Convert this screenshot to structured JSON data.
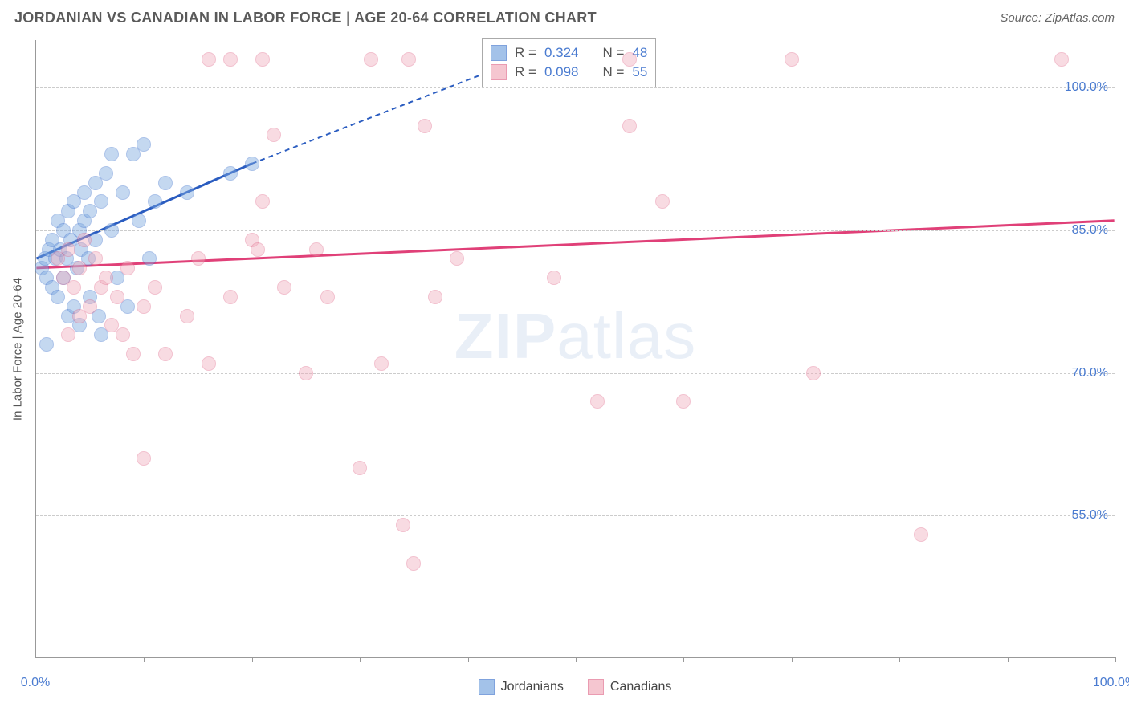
{
  "header": {
    "title": "JORDANIAN VS CANADIAN IN LABOR FORCE | AGE 20-64 CORRELATION CHART",
    "source_prefix": "Source: ",
    "source_site": "ZipAtlas.com"
  },
  "chart": {
    "type": "scatter",
    "ylabel": "In Labor Force | Age 20-64",
    "xlim": [
      0,
      100
    ],
    "ylim": [
      40,
      105
    ],
    "yticks": [
      {
        "v": 55.0,
        "label": "55.0%"
      },
      {
        "v": 70.0,
        "label": "70.0%"
      },
      {
        "v": 85.0,
        "label": "85.0%"
      },
      {
        "v": 100.0,
        "label": "100.0%"
      }
    ],
    "xticks_minor": [
      10,
      20,
      30,
      40,
      50,
      60,
      70,
      80,
      90,
      100
    ],
    "xticks_label": [
      {
        "v": 0,
        "label": "0.0%"
      },
      {
        "v": 100,
        "label": "100.0%"
      }
    ],
    "background_color": "#ffffff",
    "grid_color": "#cccccc",
    "axis_color": "#999999",
    "marker_size": 18,
    "marker_stroke_width": 1.5,
    "watermark": "ZIPatlas",
    "series": [
      {
        "name": "Jordanians",
        "fill_color": "#7da9e0",
        "fill_opacity": 0.45,
        "stroke_color": "#4a7bd0",
        "trend_color": "#2a5cc0",
        "trend_solid": {
          "x1": 0,
          "y1": 82,
          "x2": 20,
          "y2": 92
        },
        "trend_dash": {
          "x1": 20,
          "y1": 92,
          "x2": 45,
          "y2": 103
        },
        "stats": {
          "R": "0.324",
          "N": "48"
        },
        "points": [
          {
            "x": 0.5,
            "y": 81
          },
          {
            "x": 0.8,
            "y": 82
          },
          {
            "x": 1.0,
            "y": 80
          },
          {
            "x": 1.2,
            "y": 83
          },
          {
            "x": 1.5,
            "y": 84
          },
          {
            "x": 1.5,
            "y": 79
          },
          {
            "x": 1.8,
            "y": 82
          },
          {
            "x": 2.0,
            "y": 86
          },
          {
            "x": 2.0,
            "y": 78
          },
          {
            "x": 2.2,
            "y": 83
          },
          {
            "x": 2.5,
            "y": 85
          },
          {
            "x": 2.5,
            "y": 80
          },
          {
            "x": 2.8,
            "y": 82
          },
          {
            "x": 3.0,
            "y": 87
          },
          {
            "x": 3.0,
            "y": 76
          },
          {
            "x": 3.2,
            "y": 84
          },
          {
            "x": 3.5,
            "y": 88
          },
          {
            "x": 3.5,
            "y": 77
          },
          {
            "x": 3.8,
            "y": 81
          },
          {
            "x": 4.0,
            "y": 85
          },
          {
            "x": 4.0,
            "y": 75
          },
          {
            "x": 4.2,
            "y": 83
          },
          {
            "x": 4.5,
            "y": 86
          },
          {
            "x": 4.5,
            "y": 89
          },
          {
            "x": 4.8,
            "y": 82
          },
          {
            "x": 5.0,
            "y": 87
          },
          {
            "x": 5.0,
            "y": 78
          },
          {
            "x": 5.5,
            "y": 90
          },
          {
            "x": 5.5,
            "y": 84
          },
          {
            "x": 5.8,
            "y": 76
          },
          {
            "x": 6.0,
            "y": 88
          },
          {
            "x": 6.0,
            "y": 74
          },
          {
            "x": 1.0,
            "y": 73
          },
          {
            "x": 6.5,
            "y": 91
          },
          {
            "x": 7.0,
            "y": 93
          },
          {
            "x": 7.0,
            "y": 85
          },
          {
            "x": 7.5,
            "y": 80
          },
          {
            "x": 8.0,
            "y": 89
          },
          {
            "x": 8.5,
            "y": 77
          },
          {
            "x": 9.0,
            "y": 93
          },
          {
            "x": 9.5,
            "y": 86
          },
          {
            "x": 10.0,
            "y": 94
          },
          {
            "x": 10.5,
            "y": 82
          },
          {
            "x": 11.0,
            "y": 88
          },
          {
            "x": 12.0,
            "y": 90
          },
          {
            "x": 14.0,
            "y": 89
          },
          {
            "x": 18.0,
            "y": 91
          },
          {
            "x": 20.0,
            "y": 92
          }
        ]
      },
      {
        "name": "Canadians",
        "fill_color": "#f0a8b8",
        "fill_opacity": 0.4,
        "stroke_color": "#e06688",
        "trend_color": "#e04078",
        "trend_solid": {
          "x1": 0,
          "y1": 81,
          "x2": 100,
          "y2": 86
        },
        "trend_dash": null,
        "stats": {
          "R": "0.098",
          "N": "55"
        },
        "points": [
          {
            "x": 2.0,
            "y": 82
          },
          {
            "x": 2.5,
            "y": 80
          },
          {
            "x": 3.0,
            "y": 83
          },
          {
            "x": 3.5,
            "y": 79
          },
          {
            "x": 4.0,
            "y": 81
          },
          {
            "x": 4.5,
            "y": 84
          },
          {
            "x": 5.0,
            "y": 77
          },
          {
            "x": 5.5,
            "y": 82
          },
          {
            "x": 6.0,
            "y": 79
          },
          {
            "x": 6.5,
            "y": 80
          },
          {
            "x": 7.0,
            "y": 75
          },
          {
            "x": 7.5,
            "y": 78
          },
          {
            "x": 8.0,
            "y": 74
          },
          {
            "x": 8.5,
            "y": 81
          },
          {
            "x": 9.0,
            "y": 72
          },
          {
            "x": 10.0,
            "y": 77
          },
          {
            "x": 10.0,
            "y": 61
          },
          {
            "x": 11.0,
            "y": 79
          },
          {
            "x": 12.0,
            "y": 72
          },
          {
            "x": 14.0,
            "y": 76
          },
          {
            "x": 15.0,
            "y": 82
          },
          {
            "x": 16.0,
            "y": 71
          },
          {
            "x": 16.0,
            "y": 103
          },
          {
            "x": 18.0,
            "y": 78
          },
          {
            "x": 18.0,
            "y": 103
          },
          {
            "x": 20.0,
            "y": 84
          },
          {
            "x": 20.5,
            "y": 83
          },
          {
            "x": 21.0,
            "y": 103
          },
          {
            "x": 21.0,
            "y": 88
          },
          {
            "x": 22.0,
            "y": 95
          },
          {
            "x": 23.0,
            "y": 79
          },
          {
            "x": 25.0,
            "y": 70
          },
          {
            "x": 26.0,
            "y": 83
          },
          {
            "x": 27.0,
            "y": 78
          },
          {
            "x": 30.0,
            "y": 60
          },
          {
            "x": 31.0,
            "y": 103
          },
          {
            "x": 32.0,
            "y": 71
          },
          {
            "x": 34.0,
            "y": 54
          },
          {
            "x": 34.5,
            "y": 103
          },
          {
            "x": 35.0,
            "y": 50
          },
          {
            "x": 36.0,
            "y": 96
          },
          {
            "x": 37.0,
            "y": 78
          },
          {
            "x": 39.0,
            "y": 82
          },
          {
            "x": 48.0,
            "y": 80
          },
          {
            "x": 52.0,
            "y": 67
          },
          {
            "x": 55.0,
            "y": 96
          },
          {
            "x": 55.0,
            "y": 103
          },
          {
            "x": 58.0,
            "y": 88
          },
          {
            "x": 60.0,
            "y": 67
          },
          {
            "x": 70.0,
            "y": 103
          },
          {
            "x": 72.0,
            "y": 70
          },
          {
            "x": 82.0,
            "y": 53
          },
          {
            "x": 95.0,
            "y": 103
          },
          {
            "x": 3.0,
            "y": 74
          },
          {
            "x": 4.0,
            "y": 76
          }
        ]
      }
    ],
    "legend_bottom": [
      {
        "label": "Jordanians",
        "series": 0
      },
      {
        "label": "Canadians",
        "series": 1
      }
    ],
    "legend_stats_title": {
      "R": "R =",
      "N": "N ="
    }
  }
}
